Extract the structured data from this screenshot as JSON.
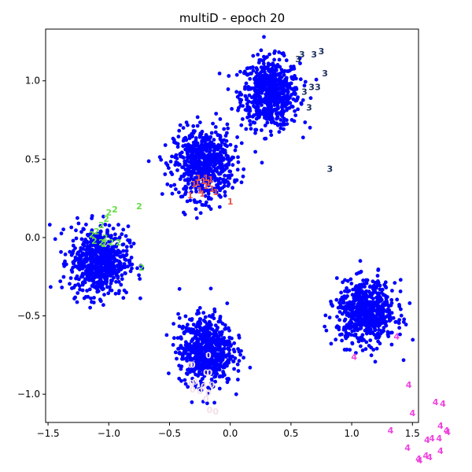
{
  "chart_data": {
    "type": "scatter",
    "title": "multiD - epoch 20",
    "xlabel": "",
    "ylabel": "",
    "xlim": [
      -1.52,
      1.55
    ],
    "ylim": [
      -1.18,
      1.33
    ],
    "xticks": [
      -1.5,
      -1.0,
      -0.5,
      0.0,
      0.5,
      1.0,
      1.5
    ],
    "yticks": [
      -1.0,
      -0.5,
      0.0,
      0.5,
      1.0
    ],
    "xtick_labels": [
      "−1.5",
      "−1.0",
      "−0.5",
      "0.0",
      "0.5",
      "1.0",
      "1.5"
    ],
    "ytick_labels": [
      "−1.0",
      "−0.5",
      "0.0",
      "0.5",
      "1.0"
    ],
    "grid": false,
    "legend": "none",
    "point_color": "#0000ff",
    "point_clusters": [
      {
        "center": [
          0.33,
          0.92
        ],
        "spread": [
          0.12,
          0.11
        ],
        "count": 650
      },
      {
        "center": [
          -0.22,
          0.47
        ],
        "spread": [
          0.12,
          0.11
        ],
        "count": 650
      },
      {
        "center": [
          -1.08,
          -0.15
        ],
        "spread": [
          0.12,
          0.11
        ],
        "count": 650
      },
      {
        "center": [
          -0.2,
          -0.72
        ],
        "spread": [
          0.11,
          0.11
        ],
        "count": 650
      },
      {
        "center": [
          1.12,
          -0.48
        ],
        "spread": [
          0.12,
          0.1
        ],
        "count": 650
      }
    ],
    "label_series": [
      {
        "label": "3",
        "color": "#1a2f5c",
        "points": [
          [
            0.59,
            1.17
          ],
          [
            0.69,
            1.17
          ],
          [
            0.75,
            1.19
          ],
          [
            0.78,
            1.05
          ],
          [
            0.72,
            0.96
          ],
          [
            0.67,
            0.96
          ],
          [
            0.61,
            0.93
          ],
          [
            0.65,
            0.83
          ],
          [
            0.82,
            0.44
          ],
          [
            0.56,
            1.14
          ]
        ]
      },
      {
        "label": "1",
        "color": "#e8574a",
        "points": [
          [
            -0.27,
            0.35
          ],
          [
            -0.22,
            0.36
          ],
          [
            -0.2,
            0.33
          ],
          [
            -0.18,
            0.35
          ],
          [
            -0.25,
            0.3
          ],
          [
            -0.15,
            0.31
          ],
          [
            -0.3,
            0.34
          ],
          [
            -0.23,
            0.28
          ],
          [
            -0.12,
            0.29
          ],
          [
            -0.2,
            0.38
          ],
          [
            -0.16,
            0.37
          ],
          [
            -0.33,
            0.27
          ],
          [
            -0.26,
            0.38
          ],
          [
            0.0,
            0.23
          ]
        ]
      },
      {
        "label": "2",
        "color": "#66dd44",
        "points": [
          [
            -0.75,
            0.2
          ],
          [
            -0.95,
            0.18
          ],
          [
            -1.0,
            0.16
          ],
          [
            -1.02,
            0.12
          ],
          [
            -1.06,
            0.08
          ],
          [
            -1.1,
            0.04
          ],
          [
            -1.14,
            0.02
          ],
          [
            -1.12,
            -0.02
          ],
          [
            -1.06,
            -0.03
          ],
          [
            -1.03,
            0.0
          ],
          [
            -0.98,
            -0.03
          ],
          [
            -0.92,
            -0.03
          ],
          [
            -1.04,
            -0.04
          ],
          [
            -0.73,
            -0.19
          ]
        ]
      },
      {
        "label": "0",
        "color": "#f4dfe6",
        "points": [
          [
            -0.18,
            -0.75
          ],
          [
            -0.33,
            -0.81
          ],
          [
            -0.31,
            -0.81
          ],
          [
            -0.2,
            -0.86
          ],
          [
            -0.17,
            -0.86
          ],
          [
            -0.32,
            -0.93
          ],
          [
            -0.29,
            -0.92
          ],
          [
            -0.22,
            -0.95
          ],
          [
            -0.15,
            -0.94
          ],
          [
            -0.31,
            -0.97
          ],
          [
            -0.25,
            -0.98
          ],
          [
            -0.18,
            -0.99
          ],
          [
            -0.17,
            -1.1
          ],
          [
            -0.12,
            -1.11
          ],
          [
            -0.2,
            -1.03
          ]
        ]
      },
      {
        "label": "4",
        "color": "#ee44dd",
        "points": [
          [
            1.37,
            -0.63
          ],
          [
            1.02,
            -0.76
          ],
          [
            1.47,
            -0.94
          ],
          [
            1.5,
            -1.12
          ],
          [
            1.69,
            -1.05
          ],
          [
            1.75,
            -1.06
          ],
          [
            1.32,
            -1.23
          ],
          [
            1.73,
            -1.2
          ],
          [
            1.78,
            -1.23
          ],
          [
            1.79,
            -1.24
          ],
          [
            1.66,
            -1.28
          ],
          [
            1.72,
            -1.28
          ],
          [
            1.62,
            -1.29
          ],
          [
            1.46,
            -1.34
          ],
          [
            1.73,
            -1.36
          ],
          [
            1.61,
            -1.39
          ],
          [
            1.55,
            -1.41
          ],
          [
            1.64,
            -1.4
          ],
          [
            1.56,
            -1.42
          ]
        ]
      }
    ]
  }
}
